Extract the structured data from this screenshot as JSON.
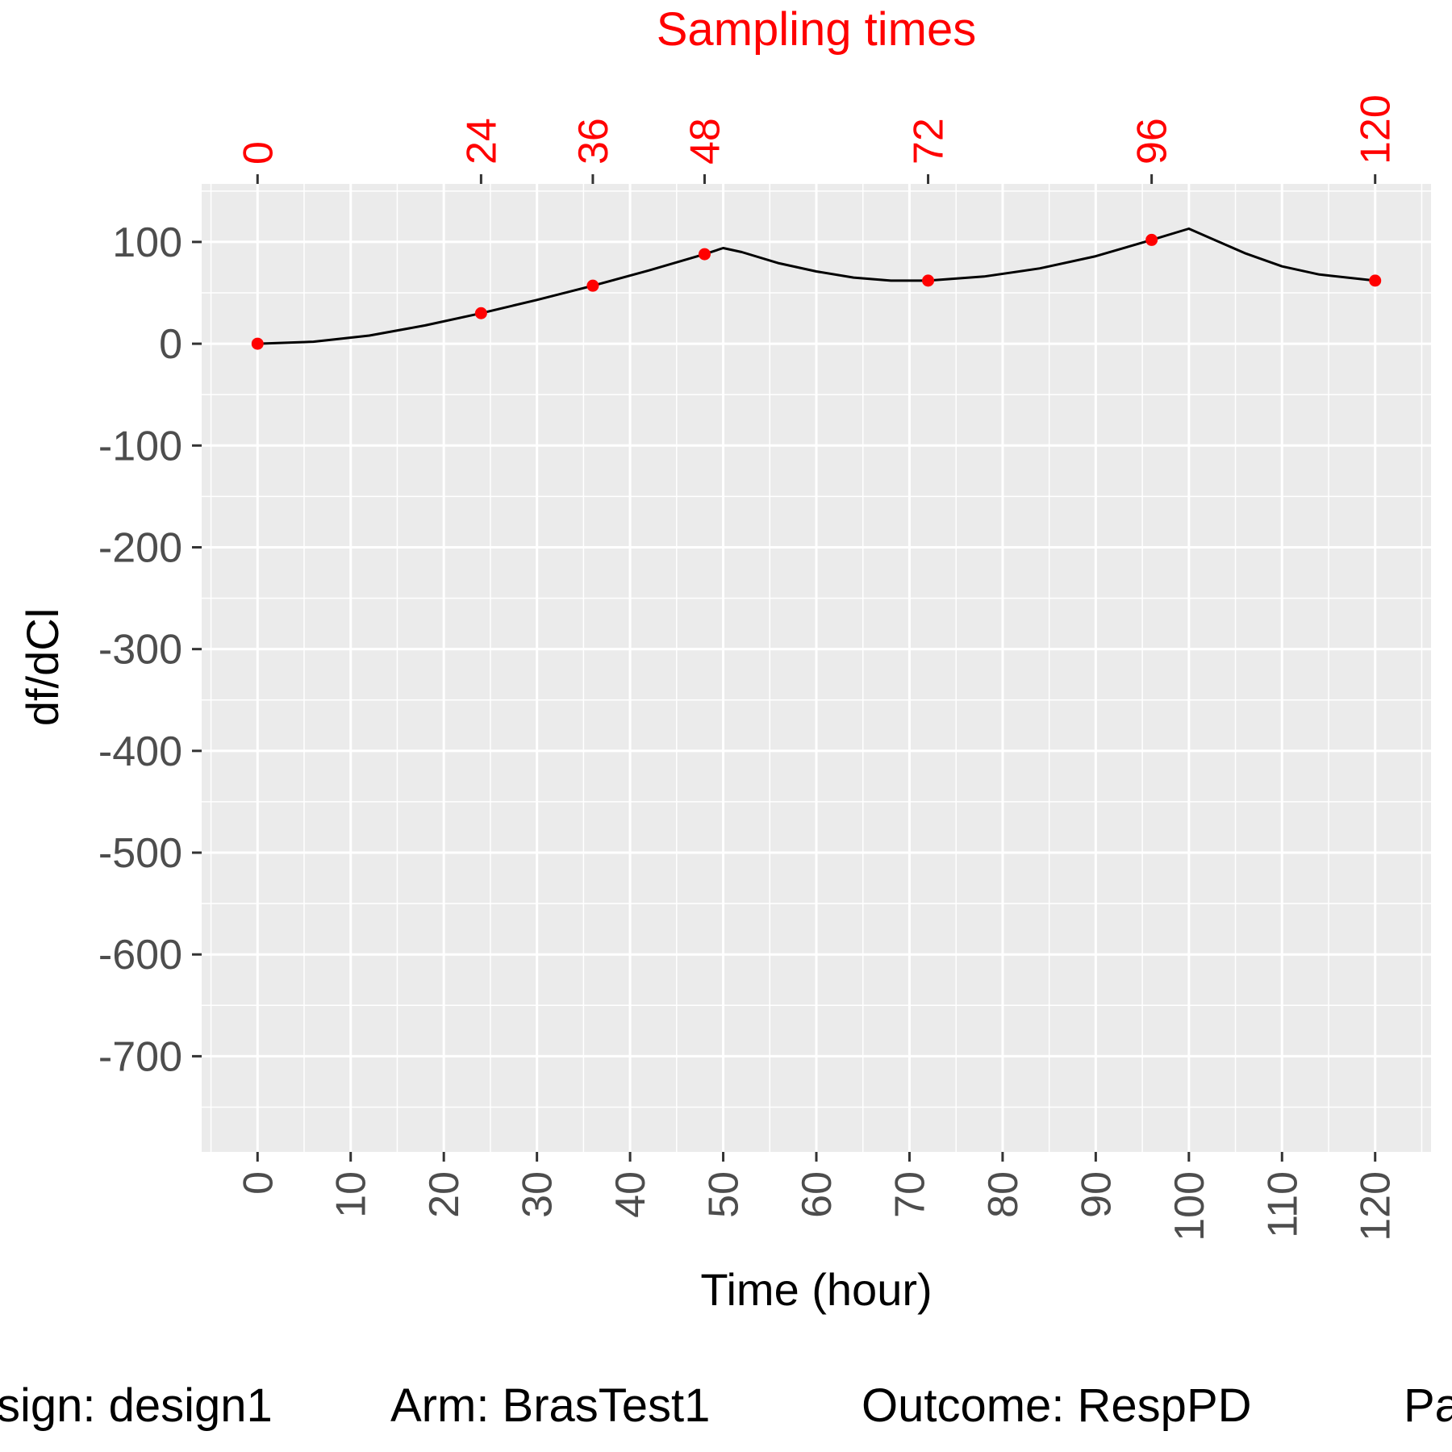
{
  "chart_data": {
    "type": "line",
    "top_axis_title": "Sampling times",
    "xlabel": "Time (hour)",
    "ylabel": "df/dCl",
    "xlim": [
      -6,
      126
    ],
    "ylim": [
      -794,
      157
    ],
    "x_ticks": [
      0,
      10,
      20,
      30,
      40,
      50,
      60,
      70,
      80,
      90,
      100,
      110,
      120
    ],
    "y_ticks": [
      100,
      0,
      -100,
      -200,
      -300,
      -400,
      -500,
      -600,
      -700
    ],
    "top_ticks": [
      0,
      24,
      36,
      48,
      72,
      96,
      120
    ],
    "grid": true,
    "series": [
      {
        "color": "#000000",
        "x": [
          0,
          6,
          12,
          18,
          24,
          30,
          36,
          42,
          48,
          50,
          52,
          56,
          60,
          64,
          68,
          72,
          78,
          84,
          90,
          96,
          100,
          102,
          106,
          110,
          114,
          120
        ],
        "y": [
          0,
          2,
          8,
          18,
          30,
          43,
          57,
          72,
          88,
          94,
          90,
          79,
          71,
          65,
          62,
          62,
          66,
          74,
          86,
          102,
          113,
          105,
          89,
          76,
          68,
          62
        ]
      }
    ],
    "sampling_points": {
      "color": "#ff0000",
      "x": [
        0,
        24,
        36,
        48,
        72,
        96,
        120
      ],
      "y": [
        0,
        30,
        57,
        88,
        62,
        102,
        62
      ]
    }
  },
  "caption": {
    "design": "sign: design1",
    "arm": "Arm: BrasTest1",
    "outcome": "Outcome: RespPD",
    "param": "Pa"
  },
  "colors": {
    "panel": "#ebebeb",
    "grid": "#ffffff",
    "curve": "#000000",
    "points": "#ff0000",
    "sampling": "#ff0000"
  }
}
